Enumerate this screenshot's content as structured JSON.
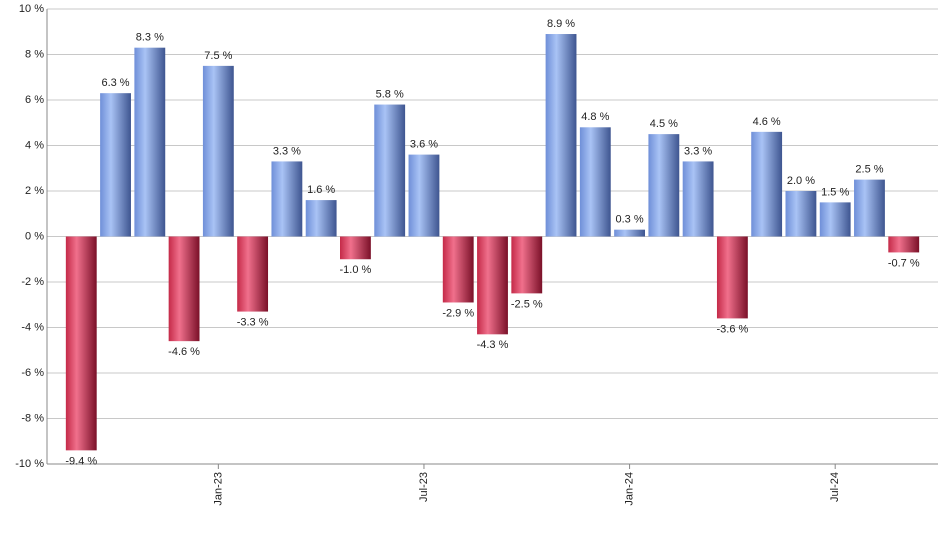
{
  "chart_data": {
    "type": "bar",
    "categories": [
      null,
      null,
      null,
      null,
      "Jan-23",
      null,
      null,
      null,
      null,
      null,
      "Jul-23",
      null,
      null,
      null,
      null,
      null,
      "Jan-24",
      null,
      null,
      null,
      null,
      null,
      "Jul-24",
      null,
      null
    ],
    "values": [
      -9.4,
      6.3,
      8.3,
      -4.6,
      7.5,
      -3.3,
      3.3,
      1.6,
      -1.0,
      5.8,
      3.6,
      -2.9,
      -4.3,
      -2.5,
      8.9,
      4.8,
      0.3,
      4.5,
      3.3,
      -3.6,
      4.6,
      2.0,
      1.5,
      2.5,
      -0.7
    ],
    "value_labels": [
      "-9.4 %",
      "6.3 %",
      "8.3 %",
      "-4.6 %",
      "7.5 %",
      "-3.3 %",
      "3.3 %",
      "1.6 %",
      "-1.0 %",
      "5.8 %",
      "3.6 %",
      "-2.9 %",
      "-4.3 %",
      "-2.5 %",
      "8.9 %",
      "4.8 %",
      "0.3 %",
      "4.5 %",
      "3.3 %",
      "-3.6 %",
      "4.6 %",
      "2.0 %",
      "1.5 %",
      "2.5 %",
      "-0.7 %"
    ],
    "positive_color": "#6f8fd8",
    "negative_color": "#c42a48",
    "ylim": [
      -10,
      10
    ],
    "yticks": [
      {
        "value": -10,
        "label": "-10 %"
      },
      {
        "value": -8,
        "label": "-8 %"
      },
      {
        "value": -6,
        "label": "-6 %"
      },
      {
        "value": -4,
        "label": "-4 %"
      },
      {
        "value": -2,
        "label": "-2 %"
      },
      {
        "value": 0,
        "label": "0 %"
      },
      {
        "value": 2,
        "label": "2 %"
      },
      {
        "value": 4,
        "label": "4 %"
      },
      {
        "value": 6,
        "label": "6 %"
      },
      {
        "value": 8,
        "label": "8 %"
      },
      {
        "value": 10,
        "label": "10 %"
      }
    ],
    "grid": true
  }
}
